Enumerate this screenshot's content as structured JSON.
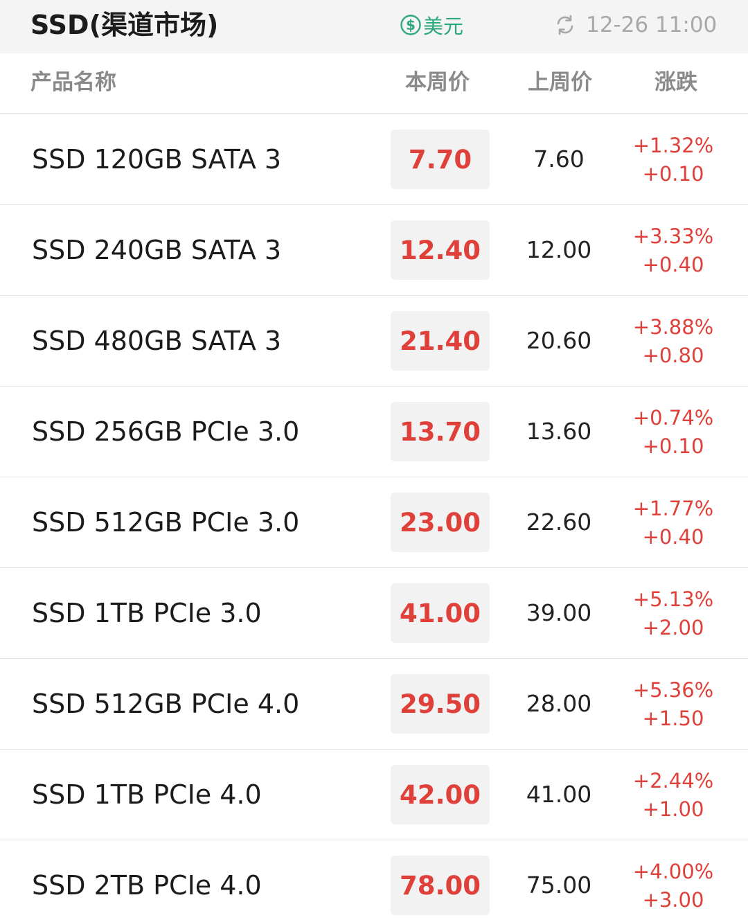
{
  "header": {
    "title": "SSD(渠道市场)",
    "currency_label": "美元",
    "currency_icon": "dollar-circle-icon",
    "refresh_icon": "refresh-icon",
    "updated_at": "12-26 11:00"
  },
  "columns": {
    "name": "产品名称",
    "current": "本周价",
    "previous": "上周价",
    "change": "涨跌"
  },
  "rows": [
    {
      "name": "SSD 120GB SATA 3",
      "current": "7.70",
      "previous": "7.60",
      "change_pct": "+1.32%",
      "change_abs": "+0.10"
    },
    {
      "name": "SSD 240GB SATA 3",
      "current": "12.40",
      "previous": "12.00",
      "change_pct": "+3.33%",
      "change_abs": "+0.40"
    },
    {
      "name": "SSD 480GB SATA 3",
      "current": "21.40",
      "previous": "20.60",
      "change_pct": "+3.88%",
      "change_abs": "+0.80"
    },
    {
      "name": "SSD 256GB PCIe 3.0",
      "current": "13.70",
      "previous": "13.60",
      "change_pct": "+0.74%",
      "change_abs": "+0.10"
    },
    {
      "name": "SSD 512GB PCIe 3.0",
      "current": "23.00",
      "previous": "22.60",
      "change_pct": "+1.77%",
      "change_abs": "+0.40"
    },
    {
      "name": "SSD 1TB PCIe 3.0",
      "current": "41.00",
      "previous": "39.00",
      "change_pct": "+5.13%",
      "change_abs": "+2.00"
    },
    {
      "name": "SSD 512GB PCIe 4.0",
      "current": "29.50",
      "previous": "28.00",
      "change_pct": "+5.36%",
      "change_abs": "+1.50"
    },
    {
      "name": "SSD 1TB PCIe 4.0",
      "current": "42.00",
      "previous": "41.00",
      "change_pct": "+2.44%",
      "change_abs": "+1.00"
    },
    {
      "name": "SSD 2TB PCIe 4.0",
      "current": "78.00",
      "previous": "75.00",
      "change_pct": "+4.00%",
      "change_abs": "+3.00"
    }
  ],
  "colors": {
    "accent_green": "#2ca87a",
    "price_up_red": "#e0403a",
    "header_bg": "#f4f4f4"
  }
}
